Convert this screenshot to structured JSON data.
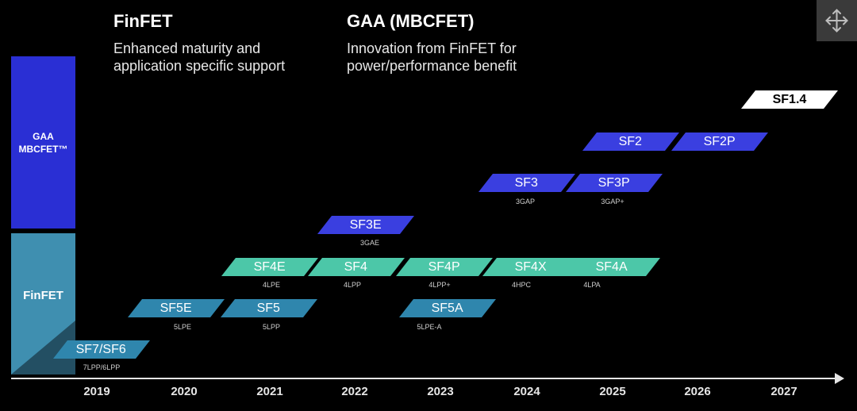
{
  "header": {
    "finfet_title": "FinFET",
    "finfet_subtitle": "Enhanced maturity and\napplication specific support",
    "gaa_title": "GAA (MBCFET)",
    "gaa_subtitle": "Innovation from FinFET for\npower/performance benefit"
  },
  "sidebar": {
    "gaa_label_line1": "GAA",
    "gaa_label_line2": "MBCFET™",
    "finfet_label": "FinFET"
  },
  "colors": {
    "gaa": "#2a2fd4",
    "finfet": "#3f8fb0",
    "teal_node": "#4cc7a8",
    "blue_node": "#2f86ad",
    "navy_node": "#3a3fe0"
  },
  "years": [
    "2019",
    "2020",
    "2021",
    "2022",
    "2023",
    "2024",
    "2025",
    "2026",
    "2027"
  ],
  "nodes": [
    {
      "label": "SF7/SF6",
      "sub": "7LPP/6LPP"
    },
    {
      "label": "SF5E",
      "sub": "5LPE"
    },
    {
      "label": "SF5",
      "sub": "5LPP"
    },
    {
      "label": "SF5A",
      "sub": "5LPE-A"
    },
    {
      "label": "SF4E",
      "sub": "4LPE"
    },
    {
      "label": "SF4",
      "sub": "4LPP"
    },
    {
      "label": "SF4P",
      "sub": "4LPP+"
    },
    {
      "label": "SF4X",
      "sub": "4HPC"
    },
    {
      "label": "SF4A",
      "sub": "4LPA"
    },
    {
      "label": "SF3E",
      "sub": "3GAE"
    },
    {
      "label": "SF3",
      "sub": "3GAP"
    },
    {
      "label": "SF3P",
      "sub": "3GAP+"
    },
    {
      "label": "SF2",
      "sub": ""
    },
    {
      "label": "SF2P",
      "sub": ""
    },
    {
      "label": "SF1.4",
      "sub": ""
    }
  ],
  "controls": {
    "expand_icon": "expand-arrows-icon"
  }
}
